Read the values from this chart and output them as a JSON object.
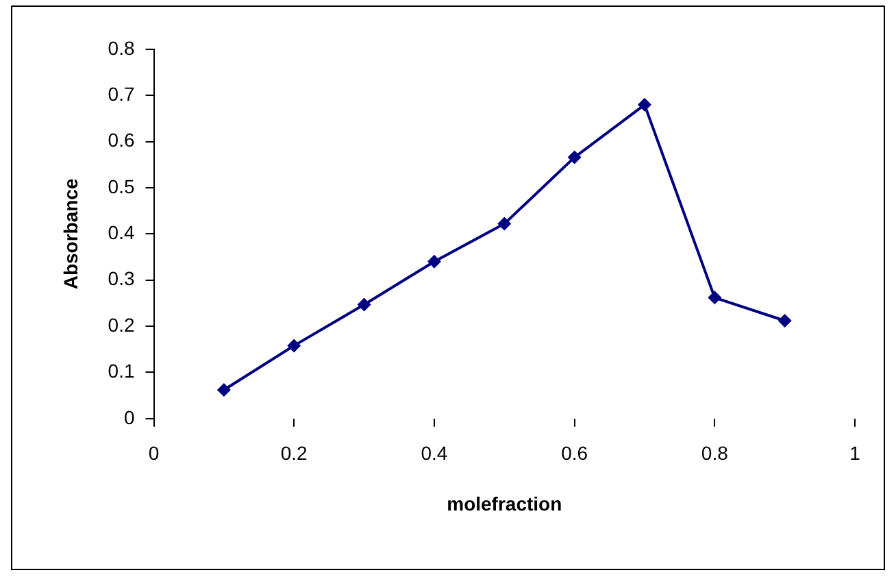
{
  "chart_data": {
    "type": "line",
    "xlabel": "molefraction",
    "ylabel": "Absorbance",
    "x": [
      0.1,
      0.2,
      0.3,
      0.4,
      0.5,
      0.6,
      0.7,
      0.8,
      0.9
    ],
    "series": [
      {
        "color": "#000080",
        "values": [
          0.062,
          0.158,
          0.247,
          0.34,
          0.422,
          0.566,
          0.68,
          0.262,
          0.212
        ]
      }
    ],
    "xlim": [
      0,
      1
    ],
    "xticks": [
      0,
      0.2,
      0.4,
      0.6,
      0.8,
      1
    ],
    "ylim": [
      0,
      0.8
    ],
    "yticks": [
      0,
      0.1,
      0.2,
      0.3,
      0.4,
      0.5,
      0.6,
      0.7,
      0.8
    ],
    "grid": false,
    "legend": false,
    "marker": "diamond",
    "line_style": "solid"
  }
}
